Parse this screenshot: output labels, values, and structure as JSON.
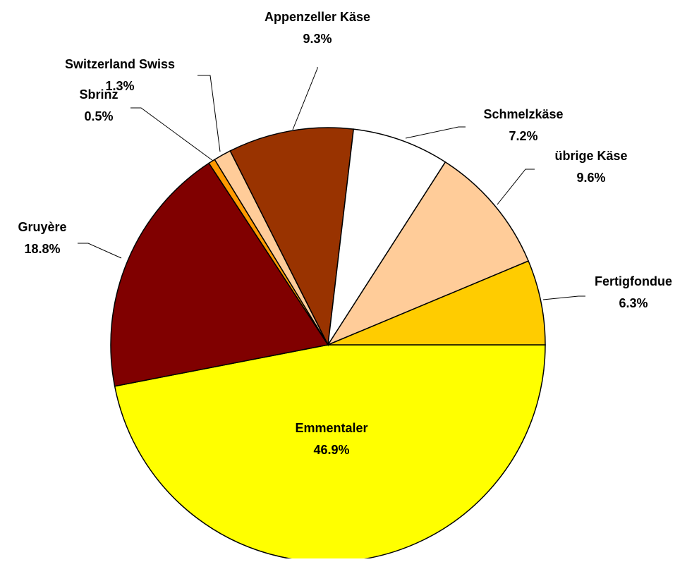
{
  "chart_data": {
    "type": "pie",
    "categories": [
      "Emmentaler",
      "Gruyère",
      "Sbrinz",
      "Switzerland Swiss",
      "Appenzeller Käse",
      "Schmelzkäse",
      "übrige Käse",
      "Fertigfondue"
    ],
    "values": [
      46.9,
      18.8,
      0.5,
      1.3,
      9.3,
      7.2,
      9.6,
      6.3
    ],
    "value_labels": [
      "46.9%",
      "18.8%",
      "0.5%",
      "1.3%",
      "9.3%",
      "7.2%",
      "9.6%",
      "6.3%"
    ],
    "colors": [
      "#ffff00",
      "#800000",
      "#ff9900",
      "#ffcc99",
      "#993300",
      "#ffffff",
      "#ffcc99",
      "#ffcc00"
    ]
  }
}
